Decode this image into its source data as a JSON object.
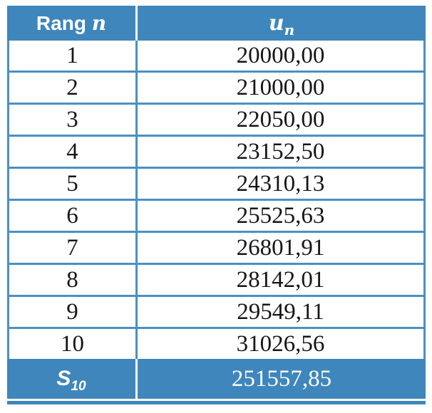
{
  "colors": {
    "fill_blue": "#3E86BC",
    "border_blue": "#4A90C4",
    "body_text": "#161616",
    "header_text": "#FFFFFF"
  },
  "table": {
    "header": {
      "col1_label": "Rang",
      "col1_var": "n",
      "col2_var": "u",
      "col2_sub": "n"
    },
    "rows": [
      {
        "rank": "1",
        "value": "20000,00"
      },
      {
        "rank": "2",
        "value": "21000,00"
      },
      {
        "rank": "3",
        "value": "22050,00"
      },
      {
        "rank": "4",
        "value": "23152,50"
      },
      {
        "rank": "5",
        "value": "24310,13"
      },
      {
        "rank": "6",
        "value": "25525,63"
      },
      {
        "rank": "7",
        "value": "26801,91"
      },
      {
        "rank": "8",
        "value": "28142,01"
      },
      {
        "rank": "9",
        "value": "29549,11"
      },
      {
        "rank": "10",
        "value": "31026,56"
      }
    ],
    "footer": {
      "label_main": "S",
      "label_sub": "10",
      "value": "251557,85"
    }
  },
  "chart_data": {
    "type": "table",
    "title": "",
    "columns": [
      "Rang n",
      "u_n"
    ],
    "rows": [
      [
        "1",
        "20000,00"
      ],
      [
        "2",
        "21000,00"
      ],
      [
        "3",
        "22050,00"
      ],
      [
        "4",
        "23152,50"
      ],
      [
        "5",
        "24310,13"
      ],
      [
        "6",
        "25525,63"
      ],
      [
        "7",
        "26801,91"
      ],
      [
        "8",
        "28142,01"
      ],
      [
        "9",
        "29549,11"
      ],
      [
        "10",
        "31026,56"
      ]
    ],
    "footer_row": [
      "S_10",
      "251557,85"
    ],
    "notes_layout": {
      "header_style": "blue fill, white bold text",
      "footer_style": "blue fill, white bold italic label",
      "decimal_separator": ","
    }
  }
}
